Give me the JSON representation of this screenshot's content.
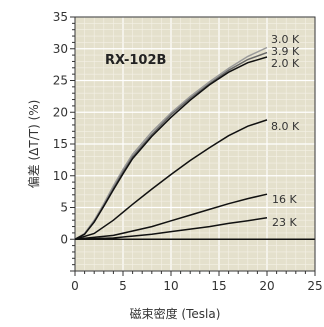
{
  "chart_data": {
    "type": "line",
    "title": "RX-102B",
    "xlabel": "磁束密度 (Tesla)",
    "ylabel": "偏差 (ΔT/T) (%)",
    "xlim": [
      0,
      25
    ],
    "ylim": [
      -5,
      35
    ],
    "xticks": [
      0,
      5,
      10,
      15,
      20,
      25
    ],
    "yticks": [
      0,
      5,
      10,
      15,
      20,
      25,
      30,
      35
    ],
    "grid": true,
    "background_color": "#e4e0cc",
    "series": [
      {
        "name": "3.0 K",
        "x": [
          0,
          1,
          2,
          3,
          4,
          5,
          6,
          8,
          10,
          12,
          14,
          16,
          18,
          20
        ],
        "values": [
          0,
          0.9,
          3.0,
          5.6,
          8.4,
          11.0,
          13.4,
          16.9,
          19.9,
          22.5,
          24.8,
          26.9,
          28.8,
          30.2
        ],
        "color": "#9a9a9a"
      },
      {
        "name": "3.9 K",
        "x": [
          0,
          1,
          2,
          3,
          4,
          5,
          6,
          8,
          10,
          12,
          14,
          16,
          18,
          20
        ],
        "values": [
          0,
          0.8,
          2.8,
          5.3,
          8.0,
          10.6,
          13.0,
          16.5,
          19.6,
          22.2,
          24.5,
          26.6,
          28.3,
          29.4
        ],
        "color": "#666666"
      },
      {
        "name": "2.0 K",
        "x": [
          0,
          1,
          2,
          3,
          4,
          5,
          6,
          8,
          10,
          12,
          14,
          16,
          18,
          20
        ],
        "values": [
          0,
          0.8,
          2.7,
          5.2,
          7.8,
          10.3,
          12.7,
          16.2,
          19.2,
          21.9,
          24.3,
          26.3,
          27.8,
          28.7
        ],
        "color": "#111111"
      },
      {
        "name": "8.0 K",
        "x": [
          0,
          2,
          4,
          6,
          8,
          10,
          12,
          14,
          16,
          18,
          20
        ],
        "values": [
          0,
          0.9,
          3.0,
          5.5,
          7.9,
          10.2,
          12.4,
          14.4,
          16.3,
          17.8,
          18.8
        ],
        "color": "#111111"
      },
      {
        "name": "16 K",
        "x": [
          0,
          4,
          6,
          8,
          10,
          12,
          14,
          16,
          18,
          20
        ],
        "values": [
          0,
          0.6,
          1.3,
          2.0,
          2.9,
          3.8,
          4.7,
          5.6,
          6.4,
          7.1
        ],
        "color": "#111111"
      },
      {
        "name": "23 K",
        "x": [
          0,
          4,
          6,
          8,
          10,
          12,
          14,
          16,
          18,
          20
        ],
        "values": [
          0,
          0.2,
          0.5,
          0.8,
          1.2,
          1.6,
          2.0,
          2.5,
          2.9,
          3.4
        ],
        "color": "#111111"
      }
    ]
  }
}
